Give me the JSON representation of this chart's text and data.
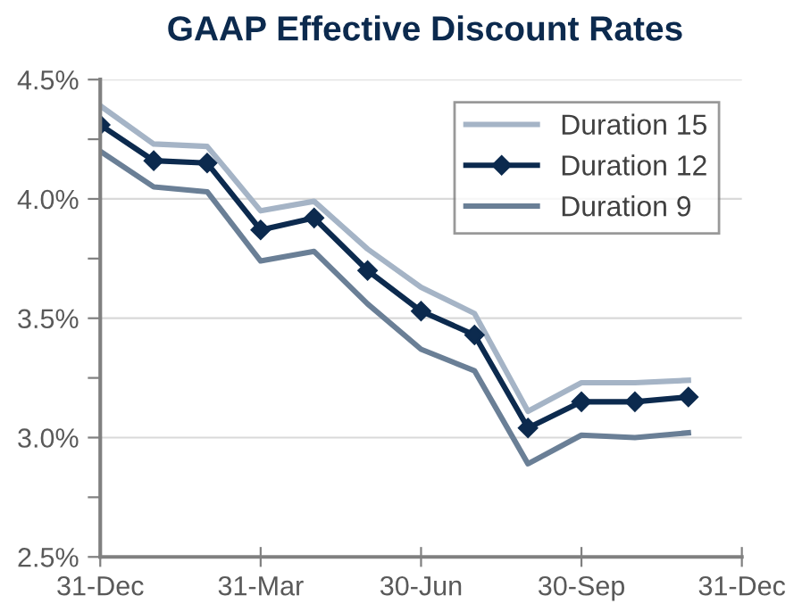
{
  "chart_data": {
    "type": "line",
    "title": "GAAP Effective Discount Rates",
    "categories": [
      "31-Dec",
      null,
      null,
      "31-Mar",
      null,
      null,
      "30-Jun",
      null,
      null,
      "30-Sep",
      null,
      null,
      "31-Dec"
    ],
    "series": [
      {
        "name": "Duration 15",
        "color": "#a5b4c6",
        "marker": "none",
        "values": [
          4.39,
          4.23,
          4.22,
          3.95,
          3.99,
          3.79,
          3.63,
          3.52,
          3.11,
          3.23,
          3.23,
          3.24,
          null
        ]
      },
      {
        "name": "Duration 12",
        "color": "#0c2a4e",
        "marker": "diamond",
        "values": [
          4.31,
          4.16,
          4.15,
          3.87,
          3.92,
          3.7,
          3.53,
          3.43,
          3.04,
          3.15,
          3.15,
          3.17,
          null
        ]
      },
      {
        "name": "Duration 9",
        "color": "#6a7f96",
        "marker": "none",
        "values": [
          4.2,
          4.05,
          4.03,
          3.74,
          3.78,
          3.56,
          3.37,
          3.28,
          2.89,
          3.01,
          3.0,
          3.02,
          null
        ]
      }
    ],
    "ylim": [
      2.5,
      4.5
    ],
    "yticks": [
      {
        "value": 2.5,
        "label": "2.5%"
      },
      {
        "value": 2.75,
        "label": null
      },
      {
        "value": 3.0,
        "label": "3.0%"
      },
      {
        "value": 3.25,
        "label": null
      },
      {
        "value": 3.5,
        "label": "3.5%"
      },
      {
        "value": 3.75,
        "label": null
      },
      {
        "value": 4.0,
        "label": "4.0%"
      },
      {
        "value": 4.25,
        "label": null
      },
      {
        "value": 4.5,
        "label": "4.5%"
      }
    ],
    "grid": "y",
    "legend": "top right",
    "line_style": "solid"
  }
}
